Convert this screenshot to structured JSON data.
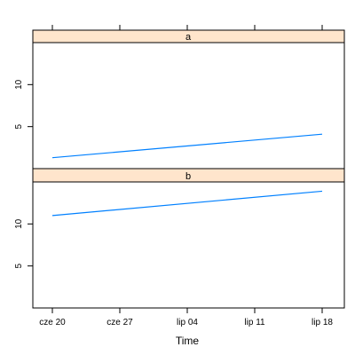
{
  "chart_data": {
    "type": "line",
    "xlabel": "Time",
    "x_ticks": [
      "cze 20",
      "cze 27",
      "lip 04",
      "lip 11",
      "lip 18"
    ],
    "y_ticks": [
      5,
      10
    ],
    "panels": [
      {
        "strip": "a",
        "ylim": [
          0,
          15
        ],
        "series": [
          {
            "x": [
              "cze 20",
              "lip 18"
            ],
            "y": [
              1.3,
              4.1
            ]
          }
        ]
      },
      {
        "strip": "b",
        "ylim": [
          0,
          15
        ],
        "series": [
          {
            "x": [
              "cze 20",
              "lip 18"
            ],
            "y": [
              11.0,
              13.9
            ]
          }
        ]
      }
    ],
    "colors": {
      "strip_bg": "#ffe5cc",
      "line": "#0080ff",
      "axis": "#000000"
    },
    "grid": false
  }
}
